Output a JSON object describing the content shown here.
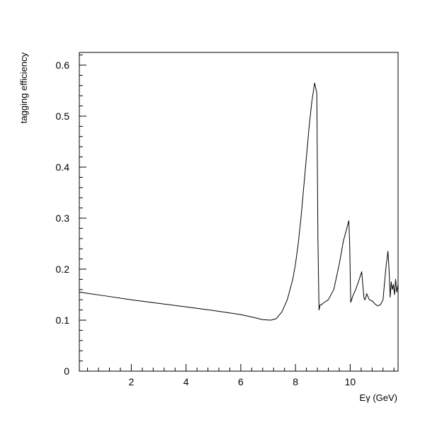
{
  "chart_data": {
    "type": "line",
    "title": "",
    "xlabel": "Eγ (GeV)",
    "ylabel": "tagging efficiency",
    "xlim": [
      0.1,
      11.75
    ],
    "ylim": [
      0,
      0.625
    ],
    "x_ticks": [
      2,
      4,
      6,
      8,
      10
    ],
    "x_tick_labels": [
      "2",
      "4",
      "6",
      "8",
      "10"
    ],
    "y_ticks": [
      0,
      0.1,
      0.2,
      0.3,
      0.4,
      0.5,
      0.6
    ],
    "y_tick_labels": [
      "0",
      "0.1",
      "0.2",
      "0.3",
      "0.4",
      "0.5",
      "0.6"
    ],
    "x_minor_step": 0.4,
    "y_minor_step": 0.02,
    "grid": false,
    "line_color": "#000000",
    "series": [
      {
        "name": "",
        "x": [
          0.1,
          1,
          2,
          3,
          4,
          5,
          6,
          6.5,
          6.8,
          7.1,
          7.3,
          7.5,
          7.7,
          7.9,
          8.0,
          8.1,
          8.2,
          8.3,
          8.4,
          8.5,
          8.6,
          8.7,
          8.78,
          8.82,
          8.86,
          8.9,
          8.95,
          9.0,
          9.2,
          9.4,
          9.6,
          9.75,
          9.85,
          9.95,
          9.98,
          10.02,
          10.1,
          10.2,
          10.3,
          10.42,
          10.5,
          10.53,
          10.56,
          10.6,
          10.7,
          10.8,
          10.9,
          11.0,
          11.1,
          11.2,
          11.3,
          11.38,
          11.42,
          11.46,
          11.5,
          11.54,
          11.58,
          11.62,
          11.66,
          11.7,
          11.75
        ],
        "y": [
          0.155,
          0.148,
          0.14,
          0.133,
          0.126,
          0.119,
          0.111,
          0.105,
          0.101,
          0.1,
          0.103,
          0.116,
          0.14,
          0.18,
          0.21,
          0.25,
          0.3,
          0.36,
          0.42,
          0.48,
          0.53,
          0.565,
          0.545,
          0.26,
          0.12,
          0.13,
          0.13,
          0.133,
          0.14,
          0.16,
          0.21,
          0.255,
          0.275,
          0.295,
          0.25,
          0.135,
          0.148,
          0.16,
          0.175,
          0.195,
          0.145,
          0.14,
          0.142,
          0.152,
          0.14,
          0.138,
          0.132,
          0.128,
          0.13,
          0.14,
          0.2,
          0.235,
          0.2,
          0.145,
          0.175,
          0.16,
          0.17,
          0.15,
          0.18,
          0.155,
          0.17
        ]
      }
    ]
  }
}
